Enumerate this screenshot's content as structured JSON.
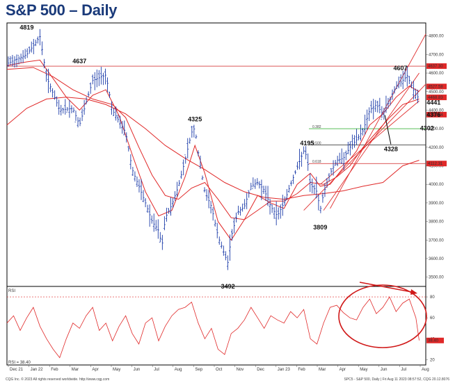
{
  "title": "S&P 500 – Daily",
  "chart_data": [
    {
      "type": "candlestick",
      "name": "price",
      "ylim": [
        3450,
        4870
      ],
      "y_ticks": [
        3500,
        3600,
        3700,
        3800,
        3900,
        4000,
        4100,
        4200,
        4300,
        4400,
        4500,
        4600,
        4700,
        4800
      ],
      "y_tick_labels": [
        "3500.00",
        "3600.00",
        "3700.00",
        "3800.00",
        "3900.00",
        "4000.00",
        "4100.00",
        "4200.00",
        "4300.00",
        "4400.00",
        "4500.00",
        "4600.00",
        "4700.00",
        "4800.00"
      ],
      "x_labels": [
        "Dec 21",
        "Jan 22",
        "Feb",
        "Mar",
        "Apr",
        "May",
        "Jun",
        "Jul",
        "Aug",
        "Sep",
        "Oct",
        "Nov",
        "Dec",
        "Jan 23",
        "Feb",
        "Mar",
        "Apr",
        "May",
        "Jun",
        "Jul",
        "Aug"
      ],
      "close_path": [
        [
          0,
          4650
        ],
        [
          3,
          4700
        ],
        [
          5,
          4796
        ],
        [
          6,
          4580
        ],
        [
          8,
          4400
        ],
        [
          10,
          4410
        ],
        [
          11,
          4320
        ],
        [
          13,
          4560
        ],
        [
          15,
          4590
        ],
        [
          16,
          4400
        ],
        [
          18,
          4280
        ],
        [
          19,
          4080
        ],
        [
          21,
          3900
        ],
        [
          22,
          3800
        ],
        [
          23,
          3750
        ],
        [
          23.5,
          3666
        ],
        [
          24,
          3820
        ],
        [
          25,
          3890
        ],
        [
          26,
          3990
        ],
        [
          27,
          4130
        ],
        [
          28,
          4280
        ],
        [
          28.5,
          4305
        ],
        [
          29,
          4170
        ],
        [
          30,
          3960
        ],
        [
          31,
          3880
        ],
        [
          32,
          3720
        ],
        [
          33,
          3620
        ],
        [
          33.5,
          3577
        ],
        [
          34,
          3720
        ],
        [
          35,
          3850
        ],
        [
          36,
          3880
        ],
        [
          37,
          3990
        ],
        [
          38,
          4010
        ],
        [
          39,
          3970
        ],
        [
          40,
          3880
        ],
        [
          41,
          3830
        ],
        [
          42,
          3900
        ],
        [
          43,
          4000
        ],
        [
          44,
          4090
        ],
        [
          45,
          4180
        ],
        [
          45.5,
          4150
        ],
        [
          46,
          4000
        ],
        [
          47,
          3960
        ],
        [
          47.5,
          3860
        ],
        [
          48,
          3950
        ],
        [
          49,
          4060
        ],
        [
          50,
          4130
        ],
        [
          51,
          4140
        ],
        [
          52,
          4200
        ],
        [
          53,
          4240
        ],
        [
          54,
          4290
        ],
        [
          55,
          4400
        ],
        [
          56,
          4430
        ],
        [
          57,
          4380
        ],
        [
          58,
          4450
        ],
        [
          59,
          4530
        ],
        [
          60,
          4560
        ],
        [
          60.8,
          4590
        ],
        [
          61,
          4560
        ],
        [
          62,
          4480
        ],
        [
          62.5,
          4465
        ]
      ],
      "series": [
        {
          "name": "short moving average",
          "values": [
            [
              0,
              4640
            ],
            [
              3,
              4660
            ],
            [
              5,
              4670
            ],
            [
              7,
              4570
            ],
            [
              9,
              4470
            ],
            [
              11,
              4400
            ],
            [
              13,
              4480
            ],
            [
              15,
              4510
            ],
            [
              17,
              4370
            ],
            [
              19,
              4160
            ],
            [
              21,
              3960
            ],
            [
              23,
              3830
            ],
            [
              25,
              3860
            ],
            [
              27,
              4040
            ],
            [
              28.5,
              4210
            ],
            [
              30,
              4060
            ],
            [
              32,
              3800
            ],
            [
              34,
              3700
            ],
            [
              36,
              3810
            ],
            [
              38,
              3940
            ],
            [
              40,
              3900
            ],
            [
              42,
              3870
            ],
            [
              44,
              4000
            ],
            [
              46,
              4060
            ],
            [
              47.5,
              3990
            ],
            [
              49,
              4000
            ],
            [
              51,
              4090
            ],
            [
              53,
              4180
            ],
            [
              55,
              4320
            ],
            [
              57,
              4380
            ],
            [
              59,
              4470
            ],
            [
              61,
              4530
            ],
            [
              62.5,
              4500
            ]
          ]
        },
        {
          "name": "medium moving average",
          "values": [
            [
              0,
              4620
            ],
            [
              4,
              4630
            ],
            [
              7,
              4580
            ],
            [
              10,
              4510
            ],
            [
              13,
              4460
            ],
            [
              16,
              4430
            ],
            [
              18,
              4360
            ],
            [
              20,
              4200
            ],
            [
              22,
              4050
            ],
            [
              24,
              3940
            ],
            [
              26,
              3920
            ],
            [
              28,
              3980
            ],
            [
              30,
              4010
            ],
            [
              32,
              3920
            ],
            [
              34,
              3820
            ],
            [
              36,
              3810
            ],
            [
              38,
              3860
            ],
            [
              40,
              3910
            ],
            [
              42,
              3910
            ],
            [
              44,
              3950
            ],
            [
              46,
              4010
            ],
            [
              48,
              4000
            ],
            [
              50,
              4040
            ],
            [
              52,
              4100
            ],
            [
              54,
              4200
            ],
            [
              56,
              4280
            ],
            [
              58,
              4360
            ],
            [
              60,
              4430
            ],
            [
              62.5,
              4460
            ]
          ]
        },
        {
          "name": "long moving average",
          "values": [
            [
              0,
              4320
            ],
            [
              3,
              4410
            ],
            [
              6,
              4460
            ],
            [
              9,
              4470
            ],
            [
              12,
              4460
            ],
            [
              15,
              4430
            ],
            [
              18,
              4380
            ],
            [
              21,
              4300
            ],
            [
              24,
              4210
            ],
            [
              27,
              4140
            ],
            [
              30,
              4080
            ],
            [
              33,
              4010
            ],
            [
              36,
              3960
            ],
            [
              39,
              3930
            ],
            [
              42,
              3920
            ],
            [
              45,
              3940
            ],
            [
              48,
              3950
            ],
            [
              51,
              3965
            ],
            [
              54,
              3990
            ],
            [
              57,
              4010
            ],
            [
              60,
              4100
            ],
            [
              62.5,
              4130
            ]
          ]
        }
      ],
      "horizontal_levels": [
        {
          "value": 4637.3,
          "label": "4637.30",
          "kind": "resistance"
        },
        {
          "value": 4300,
          "label": "0.382",
          "kind": "fibonacci"
        },
        {
          "value": 4213,
          "label": "0.500",
          "kind": "fibonacci"
        },
        {
          "value": 4112.31,
          "label": "0.618",
          "kind": "fibonacci"
        }
      ],
      "trendlines": [
        {
          "from": [
            48,
            3860
          ],
          "to": [
            62.5,
            4600
          ]
        },
        {
          "from": [
            49,
            3870
          ],
          "to": [
            63.5,
            4810
          ]
        },
        {
          "from": [
            45,
            3860
          ],
          "to": [
            63.5,
            4540
          ]
        },
        {
          "from": [
            47.5,
            4000
          ],
          "to": [
            62.5,
            4450
          ]
        }
      ],
      "right_labels": [
        {
          "value": 4637.3,
          "label": "4637.30"
        },
        {
          "value": 4527.58,
          "label": "4527.58"
        },
        {
          "value": 4468.83,
          "label": "4468.83"
        },
        {
          "value": 4375.84,
          "label": "4375.84"
        },
        {
          "value": 4112.31,
          "label": "4112.31"
        }
      ],
      "annotations": [
        {
          "text": "4819",
          "x": 3,
          "y": 4819
        },
        {
          "text": "4637",
          "x": 11,
          "y": 4637
        },
        {
          "text": "4325",
          "x": 28.5,
          "y": 4325
        },
        {
          "text": "4195",
          "x": 45.5,
          "y": 4195
        },
        {
          "text": "3809",
          "x": 47.5,
          "y": 3809
        },
        {
          "text": "3492",
          "x": 33.5,
          "y": 3492
        },
        {
          "text": "4607",
          "x": 60.5,
          "y": 4607
        },
        {
          "text": "4441",
          "x": 63,
          "y": 4441
        },
        {
          "text": "4376",
          "x": 63,
          "y": 4376
        },
        {
          "text": "4302",
          "x": 62,
          "y": 4302
        },
        {
          "text": "4328",
          "x": 58,
          "y": 4328
        }
      ]
    },
    {
      "type": "line",
      "name": "RSI",
      "title": "RSI",
      "ylim": [
        15,
        90
      ],
      "y_ticks": [
        20,
        40,
        60,
        80
      ],
      "y_tick_labels": [
        "20",
        "40",
        "60",
        "80"
      ],
      "overbought": 80,
      "last_value_label": "38.40",
      "legend": "RSI = 38.40",
      "values": [
        [
          0,
          55
        ],
        [
          1,
          62
        ],
        [
          2,
          48
        ],
        [
          3,
          60
        ],
        [
          4,
          70
        ],
        [
          5,
          52
        ],
        [
          6,
          40
        ],
        [
          7,
          30
        ],
        [
          8,
          22
        ],
        [
          9,
          40
        ],
        [
          10,
          55
        ],
        [
          11,
          50
        ],
        [
          12,
          62
        ],
        [
          13,
          70
        ],
        [
          14,
          48
        ],
        [
          15,
          55
        ],
        [
          16,
          38
        ],
        [
          17,
          52
        ],
        [
          18,
          62
        ],
        [
          19,
          45
        ],
        [
          20,
          35
        ],
        [
          21,
          55
        ],
        [
          22,
          60
        ],
        [
          23,
          38
        ],
        [
          24,
          52
        ],
        [
          25,
          62
        ],
        [
          26,
          68
        ],
        [
          27,
          70
        ],
        [
          28,
          75
        ],
        [
          29,
          55
        ],
        [
          30,
          40
        ],
        [
          31,
          50
        ],
        [
          32,
          30
        ],
        [
          33,
          25
        ],
        [
          34,
          45
        ],
        [
          35,
          50
        ],
        [
          36,
          58
        ],
        [
          37,
          70
        ],
        [
          38,
          60
        ],
        [
          39,
          50
        ],
        [
          40,
          62
        ],
        [
          41,
          58
        ],
        [
          42,
          55
        ],
        [
          43,
          66
        ],
        [
          44,
          60
        ],
        [
          45,
          68
        ],
        [
          46,
          40
        ],
        [
          47,
          35
        ],
        [
          48,
          55
        ],
        [
          49,
          70
        ],
        [
          50,
          72
        ],
        [
          51,
          65
        ],
        [
          52,
          60
        ],
        [
          53,
          58
        ],
        [
          54,
          70
        ],
        [
          55,
          78
        ],
        [
          56,
          64
        ],
        [
          57,
          70
        ],
        [
          58,
          80
        ],
        [
          59,
          66
        ],
        [
          60,
          74
        ],
        [
          61,
          78
        ],
        [
          62,
          60
        ],
        [
          62.5,
          38.4
        ]
      ]
    }
  ],
  "footer_left": "CQG Inc. © 2023 All rights reserved worldwide. http://www.cqg.com",
  "footer_right": "SPC5 - S&P 500, Daily | Fri Aug 11 2023 08:57:52, CQG 20.12.8076"
}
